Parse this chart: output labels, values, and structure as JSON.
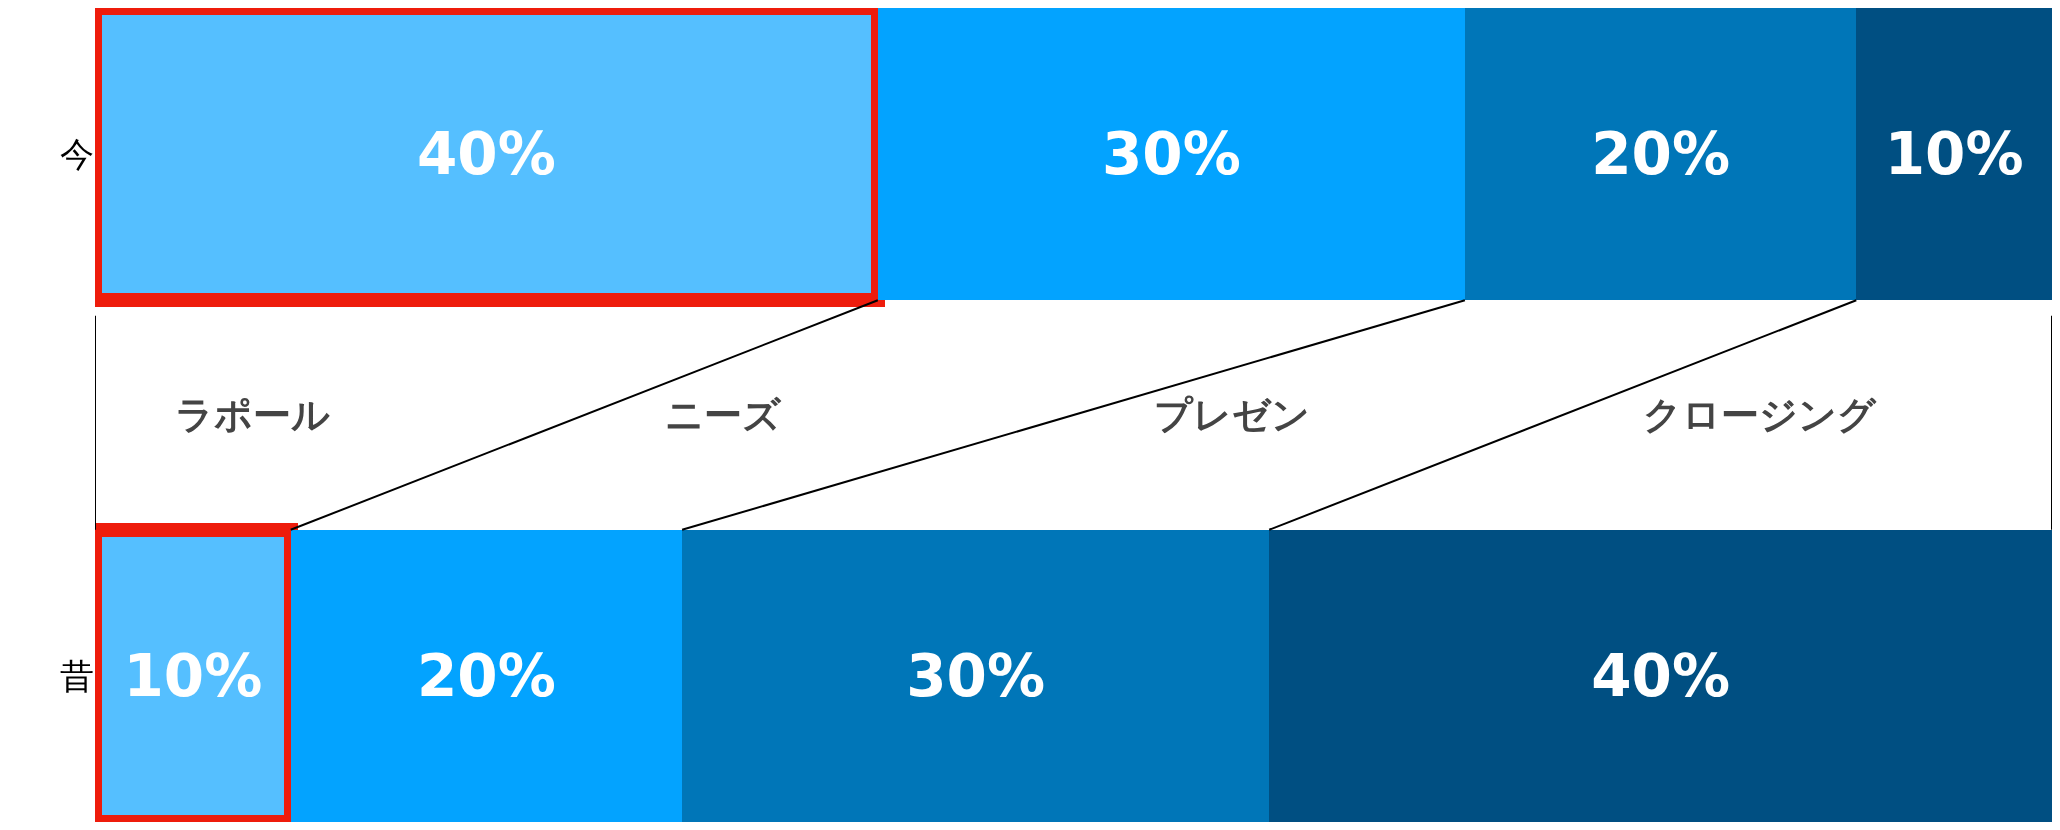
{
  "chart_data": {
    "type": "bar",
    "orientation": "horizontal",
    "stacked": true,
    "categories": [
      "今",
      "昔"
    ],
    "tick_labels": "y",
    "legend": false,
    "series": [
      {
        "name": "ラポール",
        "color": "#55bfff",
        "values": [
          40,
          10
        ],
        "value_labels": [
          "40%",
          "10%"
        ]
      },
      {
        "name": "ニーズ",
        "color": "#03a3ff",
        "values": [
          30,
          20
        ],
        "value_labels": [
          "30%",
          "20%"
        ]
      },
      {
        "name": "プレゼン",
        "color": "#0076b8",
        "values": [
          20,
          30
        ],
        "value_labels": [
          "20%",
          "30%"
        ]
      },
      {
        "name": "クロージング",
        "color": "#004f82",
        "values": [
          10,
          40
        ],
        "value_labels": [
          "10%",
          "40%"
        ]
      }
    ]
  }
}
